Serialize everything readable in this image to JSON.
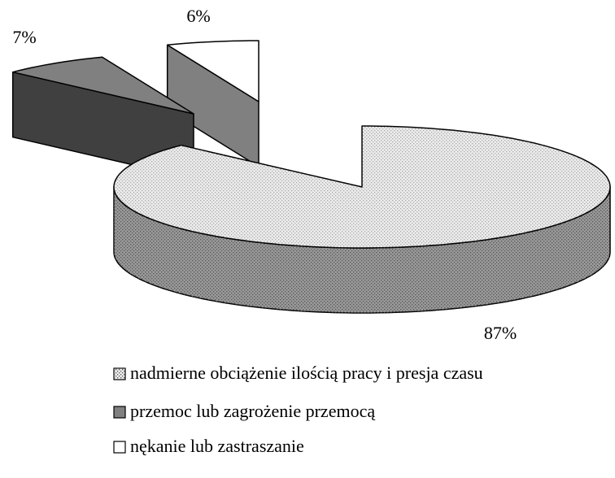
{
  "chart_data": {
    "type": "pie3d",
    "categories": [
      "nadmierne obciążenie ilością pracy i presja czasu",
      "przemoc lub zagrożenie przemocą",
      "nękanie lub zastraszanie"
    ],
    "values": [
      87,
      7,
      6
    ],
    "value_labels": [
      "87%",
      "7%",
      "6%"
    ],
    "colors": [
      "#ececec",
      "#808080",
      "#ffffff"
    ],
    "legend": "bottom"
  }
}
